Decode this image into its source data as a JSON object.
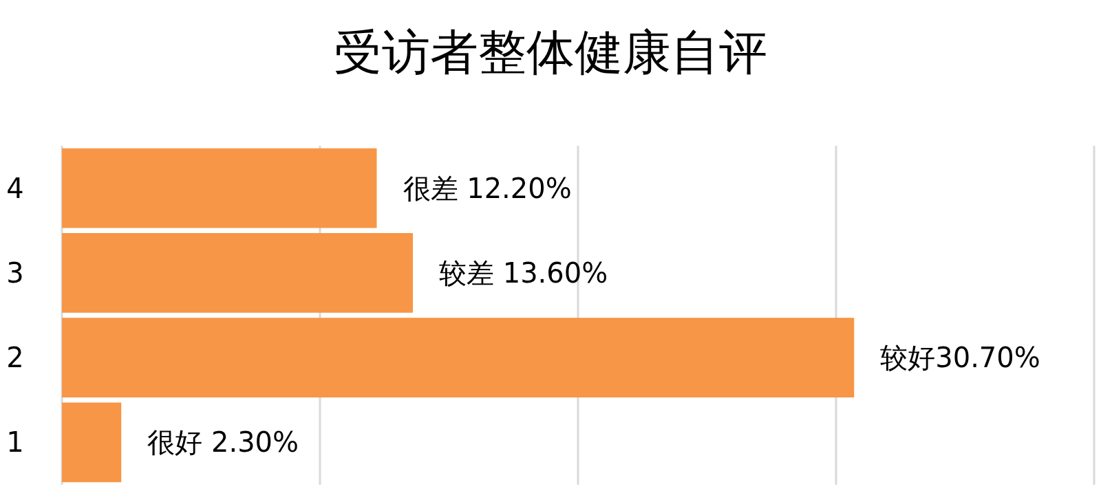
{
  "chart_data": {
    "type": "bar",
    "orientation": "horizontal",
    "title": "受访者整体健康自评",
    "categories": [
      "4",
      "3",
      "2",
      "1"
    ],
    "values": [
      12.2,
      13.6,
      30.7,
      2.3
    ],
    "value_labels": [
      "很差 12.20%",
      "较差 13.60%",
      "较好30.70%",
      "很好 2.30%"
    ],
    "color": "#f79646",
    "xlim": [
      0,
      40
    ],
    "xticks": [
      {
        "value": 0,
        "label": null
      },
      {
        "value": 10,
        "label": null
      },
      {
        "value": 20,
        "label": null
      },
      {
        "value": 30,
        "label": null
      },
      {
        "value": 40,
        "label": null
      }
    ],
    "grid": "x",
    "tick_labels": "y"
  }
}
